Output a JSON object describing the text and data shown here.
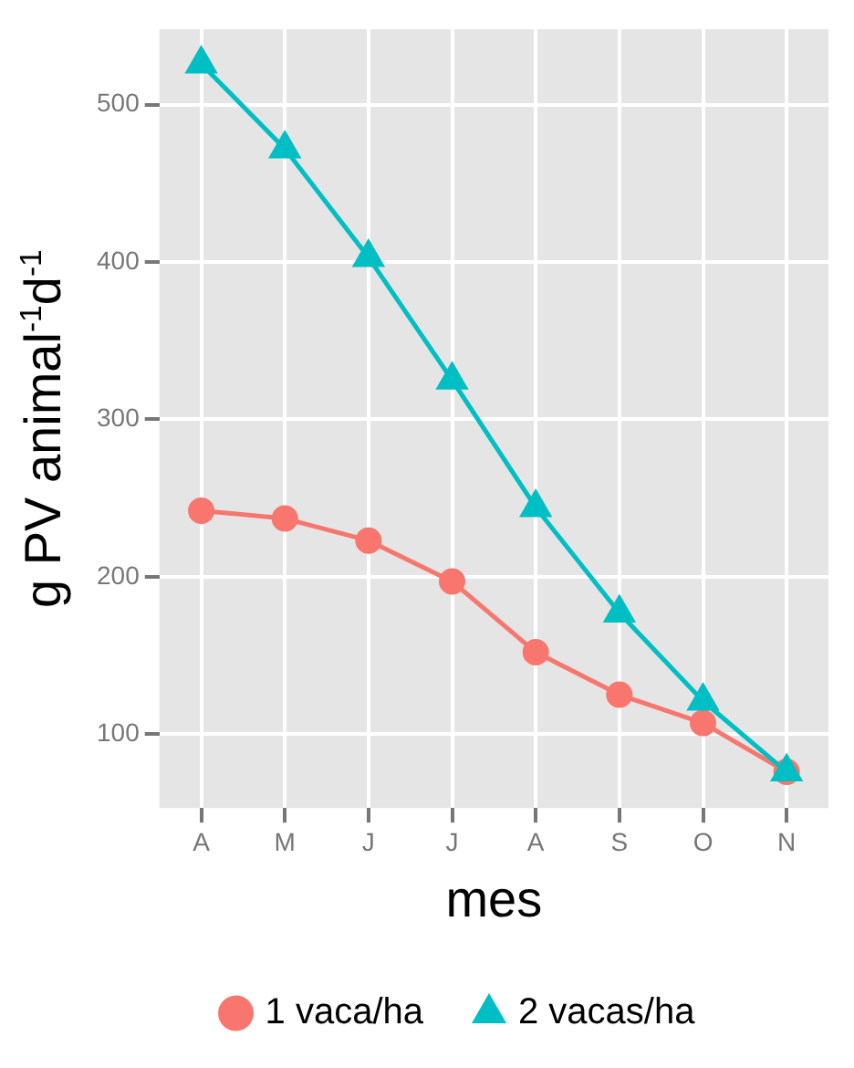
{
  "chart_data": {
    "type": "line",
    "xlabel": "mes",
    "ylabel": "g PV animal$^{-1}$d$^{-1}$",
    "categories": [
      "A",
      "M",
      "J",
      "J",
      "A",
      "S",
      "O",
      "N"
    ],
    "series": [
      {
        "name": "1 vaca/ha",
        "color": "#f8766d",
        "marker": "circle",
        "values": [
          242,
          237,
          223,
          197,
          152,
          125,
          107,
          76
        ]
      },
      {
        "name": "2 vacas/ha",
        "color": "#00bfc4",
        "marker": "triangle",
        "values": [
          526,
          472,
          403,
          325,
          244,
          177,
          121,
          76
        ]
      }
    ],
    "ylim": [
      53,
      548
    ],
    "yticks": [
      100,
      200,
      300,
      400,
      500
    ],
    "grid": true,
    "legend": "bottom"
  }
}
